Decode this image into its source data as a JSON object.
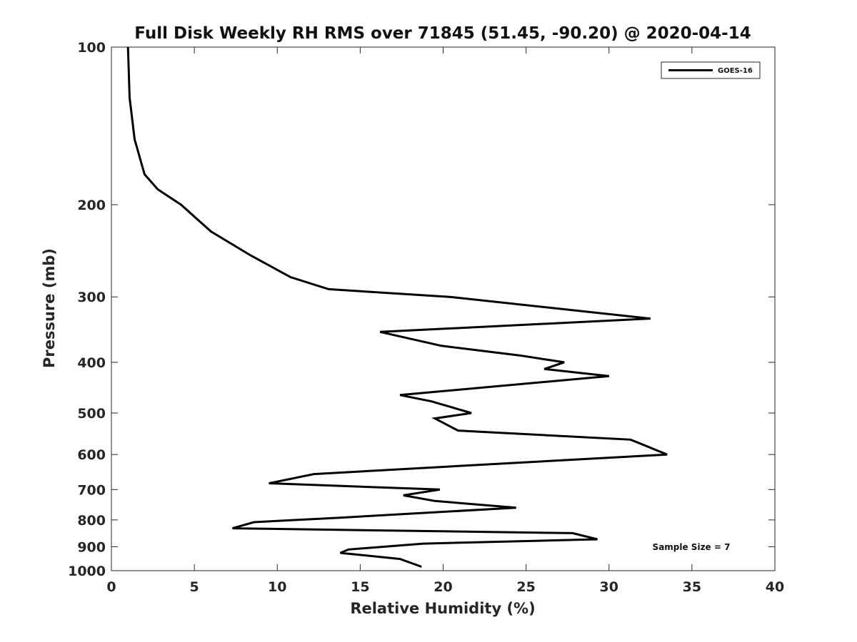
{
  "chart_data": {
    "type": "line",
    "title": "Full Disk Weekly RH RMS over 71845 (51.45, -90.20) @ 2020-04-14",
    "xlabel": "Relative Humidity (%)",
    "ylabel": "Pressure (mb)",
    "xlim": [
      0,
      40
    ],
    "ylim": [
      100,
      1000
    ],
    "yscale": "log",
    "yreversed": true,
    "xticks": [
      0,
      5,
      10,
      15,
      20,
      25,
      30,
      35,
      40
    ],
    "xtick_labels": [
      "0",
      "5",
      "10",
      "15",
      "20",
      "25",
      "30",
      "35",
      "40"
    ],
    "yticks": [
      100,
      200,
      300,
      400,
      500,
      600,
      700,
      800,
      900,
      1000
    ],
    "ytick_labels": [
      "100",
      "200",
      "300",
      "400",
      "500",
      "600",
      "700",
      "800",
      "900",
      "1000"
    ],
    "grid": false,
    "legend": {
      "position": "top-right",
      "entries": [
        "GOES-16"
      ]
    },
    "annotation": "Sample Size = 7",
    "series": [
      {
        "name": "GOES-16",
        "color": "#000000",
        "x": [
          1.0,
          1.1,
          1.4,
          2.0,
          2.8,
          4.2,
          6.0,
          8.4,
          10.8,
          13.1,
          20.4,
          32.5,
          16.2,
          19.9,
          24.6,
          27.3,
          26.1,
          30.0,
          17.4,
          19.3,
          21.7,
          19.5,
          20.9,
          31.3,
          33.5,
          20.2,
          12.2,
          9.5,
          19.8,
          17.6,
          19.5,
          24.4,
          13.8,
          8.6,
          7.3,
          27.8,
          29.3,
          18.8,
          14.3,
          13.8,
          17.4,
          18.7
        ],
        "y": [
          100,
          125,
          150,
          175,
          187,
          200,
          225,
          250,
          275,
          290,
          300,
          330,
          350,
          372,
          388,
          400,
          412,
          425,
          462,
          475,
          500,
          512,
          540,
          562,
          600,
          633,
          654,
          681,
          700,
          718,
          736,
          758,
          792,
          808,
          830,
          848,
          871,
          888,
          911,
          925,
          950,
          983
        ]
      }
    ]
  }
}
